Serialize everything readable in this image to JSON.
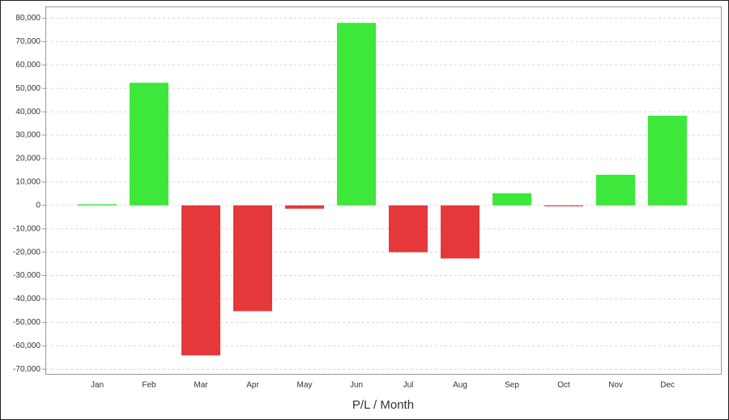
{
  "chart_data": {
    "type": "bar",
    "x_label": "P/L / Month",
    "categories": [
      "Jan",
      "Feb",
      "Mar",
      "Apr",
      "May",
      "Jun",
      "Jul",
      "Aug",
      "Sep",
      "Oct",
      "Nov",
      "Dec"
    ],
    "values": [
      500,
      52400,
      -64100,
      -45200,
      -1400,
      78000,
      -20000,
      -22700,
      5200,
      -400,
      13100,
      38300
    ],
    "positive_color": "#3de83a",
    "negative_color": "#e5383b",
    "ylim": [
      -72000,
      85000
    ],
    "yticks": [
      {
        "value": -70000,
        "label": "-70,000"
      },
      {
        "value": -60000,
        "label": "-60,000"
      },
      {
        "value": -50000,
        "label": "-50,000"
      },
      {
        "value": -40000,
        "label": "-40,000"
      },
      {
        "value": -30000,
        "label": "-30,000"
      },
      {
        "value": -20000,
        "label": "-20,000"
      },
      {
        "value": -10000,
        "label": "-10,000"
      },
      0,
      {
        "value": 10000,
        "label": "10,000"
      },
      {
        "value": 20000,
        "label": "20,000"
      },
      {
        "value": 30000,
        "label": "30,000"
      },
      {
        "value": 40000,
        "label": "40,000"
      },
      {
        "value": 50000,
        "label": "50,000"
      },
      {
        "value": 60000,
        "label": "60,000"
      },
      {
        "value": 70000,
        "label": "70,000"
      },
      {
        "value": 80000,
        "label": "80,000"
      }
    ],
    "grid": true
  }
}
